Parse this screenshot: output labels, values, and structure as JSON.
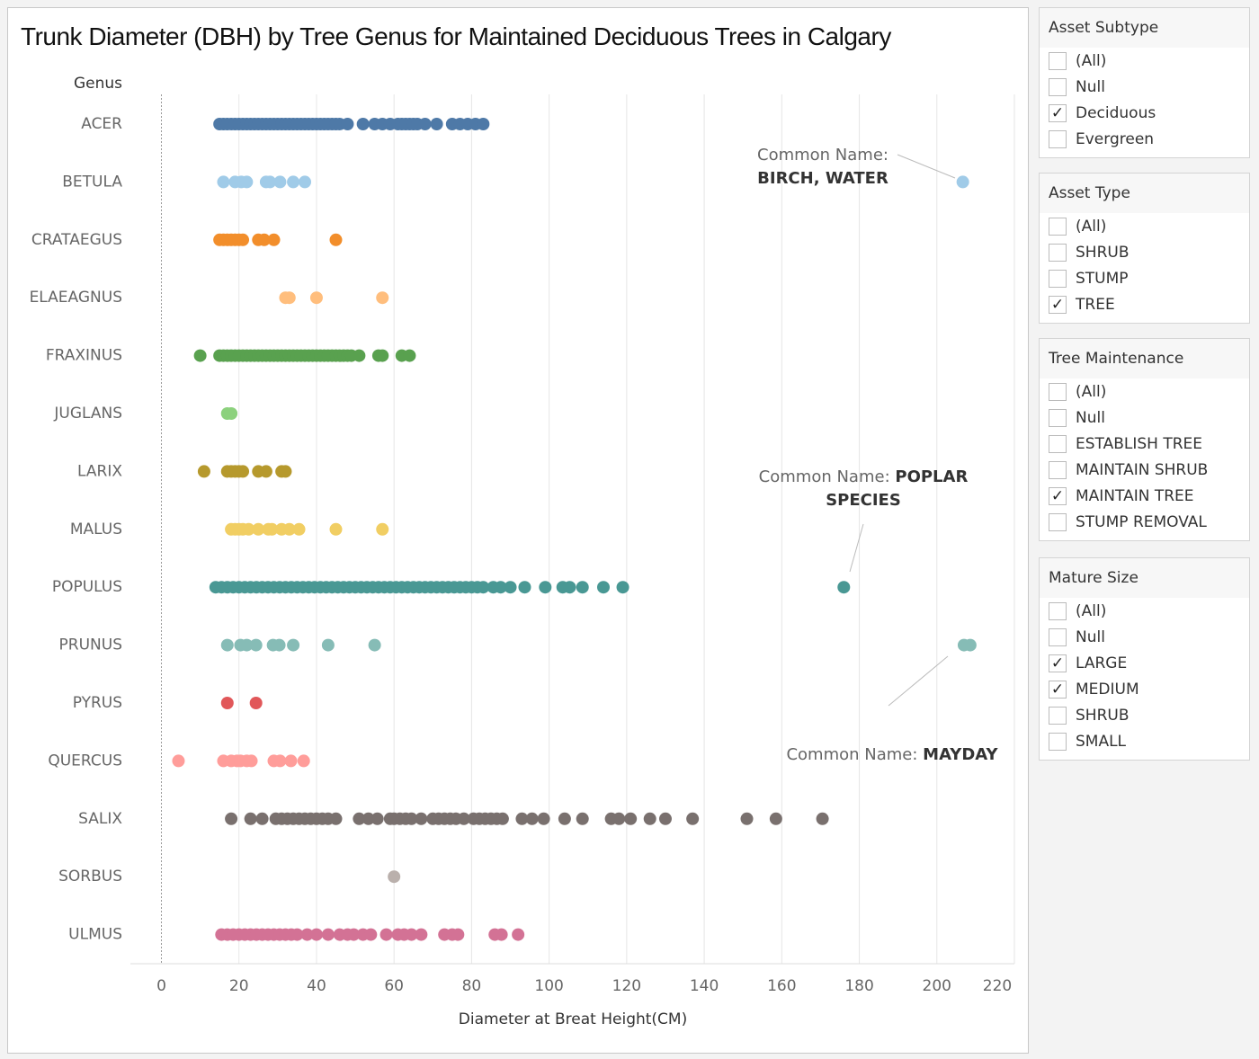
{
  "chart_data": {
    "type": "strip",
    "title": "Trunk Diameter (DBH) by Tree Genus for Maintained Deciduous Trees in Calgary",
    "y_header": "Genus",
    "x_label": "Diameter at Breat Height(CM)",
    "xlim": [
      -8,
      220
    ],
    "xticks": [
      0,
      20,
      40,
      60,
      80,
      100,
      120,
      140,
      160,
      180,
      200,
      220
    ],
    "grid": true,
    "series": [
      {
        "name": "ACER",
        "color": "#4e79a7",
        "values": [
          15,
          16,
          17,
          18,
          19,
          20,
          21,
          22,
          23,
          24,
          25,
          26,
          27,
          28,
          29,
          30,
          31,
          32,
          33,
          34,
          35,
          36,
          37,
          38,
          39,
          40,
          41,
          42,
          43,
          44,
          45,
          46,
          48,
          52,
          55,
          57,
          59,
          61,
          62,
          63,
          64,
          65,
          66,
          68,
          71,
          75,
          77,
          79,
          81,
          83
        ]
      },
      {
        "name": "BETULA",
        "color": "#a0cbe8",
        "values": [
          16,
          19,
          20.6,
          22,
          27,
          28,
          30.6,
          34,
          37,
          206.7
        ]
      },
      {
        "name": "CRATAEGUS",
        "color": "#f28e2b",
        "values": [
          15,
          16,
          17,
          18,
          19,
          20,
          21,
          25,
          26.5,
          29,
          45
        ]
      },
      {
        "name": "ELAEAGNUS",
        "color": "#ffbe7d",
        "values": [
          32,
          33,
          40,
          57
        ]
      },
      {
        "name": "FRAXINUS",
        "color": "#59a14f",
        "values": [
          10,
          15,
          16,
          17,
          18,
          19,
          20,
          21,
          22,
          23,
          24,
          25,
          26,
          27,
          28,
          29,
          30,
          31,
          32,
          33,
          34,
          35,
          36,
          37,
          38,
          39,
          40,
          41,
          42,
          43,
          44,
          45,
          46,
          47,
          48,
          49,
          51,
          56,
          57,
          62,
          64
        ]
      },
      {
        "name": "JUGLANS",
        "color": "#8cd17d",
        "values": [
          17,
          18
        ]
      },
      {
        "name": "LARIX",
        "color": "#b6992d",
        "values": [
          11,
          17,
          18,
          19,
          20,
          21,
          25,
          27,
          31,
          32
        ]
      },
      {
        "name": "MALUS",
        "color": "#f1ce63",
        "values": [
          18,
          19,
          20,
          21,
          22.5,
          25,
          27.6,
          28.5,
          31,
          33,
          35.5,
          45,
          57
        ]
      },
      {
        "name": "POPULUS",
        "color": "#499894",
        "values": [
          14,
          15.5,
          17,
          18.5,
          20,
          21.5,
          23,
          24.5,
          26,
          27.5,
          29,
          30.5,
          32,
          33.5,
          35,
          36.5,
          38,
          39.5,
          41,
          42.5,
          44,
          45.5,
          47,
          48.5,
          50,
          51.5,
          53,
          54.5,
          56,
          57.5,
          59,
          60.5,
          62,
          63.5,
          65,
          66.5,
          68,
          69.5,
          71,
          72.5,
          74,
          75.5,
          77,
          78.5,
          80,
          81.5,
          83,
          85.6,
          87.5,
          90,
          93.7,
          99,
          103.5,
          105.3,
          108.6,
          114,
          119,
          176
        ]
      },
      {
        "name": "PRUNUS",
        "color": "#86bcb6",
        "values": [
          17,
          20.4,
          22,
          24.4,
          28.8,
          30.4,
          34,
          43,
          55,
          207,
          208.6
        ]
      },
      {
        "name": "PYRUS",
        "color": "#e15759",
        "values": [
          17,
          24.4
        ]
      },
      {
        "name": "QUERCUS",
        "color": "#ff9d9a",
        "values": [
          4.4,
          16,
          18,
          19.5,
          20.4,
          22,
          23.2,
          29,
          30.6,
          33.4,
          36.7
        ]
      },
      {
        "name": "SALIX",
        "color": "#79706e",
        "values": [
          18,
          23,
          26,
          29.5,
          31,
          32.5,
          34,
          35.5,
          37,
          38.5,
          40,
          41.5,
          43,
          45,
          51,
          53.4,
          55.7,
          59,
          60,
          61.5,
          63,
          64.5,
          67,
          70,
          71.5,
          73,
          74.5,
          76,
          78,
          80.5,
          82,
          83.5,
          85,
          86.5,
          88,
          93,
          95.6,
          98.6,
          104,
          108.6,
          116,
          118,
          121,
          126,
          130,
          137,
          151,
          158.5,
          170.5
        ]
      },
      {
        "name": "SORBUS",
        "color": "#bab0ac",
        "values": [
          60
        ]
      },
      {
        "name": "ULMUS",
        "color": "#d37295",
        "values": [
          15.5,
          17,
          18.5,
          20,
          21.5,
          23,
          24.5,
          26,
          27.5,
          29,
          30.5,
          32,
          33.5,
          35,
          37.6,
          40,
          43,
          46,
          48,
          49.6,
          52,
          54,
          58,
          61,
          62.6,
          64.5,
          67,
          73,
          75,
          76.5,
          86,
          87.7,
          92
        ]
      }
    ],
    "annotations": [
      {
        "label": "Common Name:",
        "text": "BIRCH, WATER"
      },
      {
        "label": "Common Name:",
        "text": "POPLAR SPECIES"
      },
      {
        "label": "Common Name:",
        "text": "MAYDAY"
      }
    ]
  },
  "filters": [
    {
      "title": "Asset Subtype",
      "options": [
        {
          "label": "(All)",
          "checked": false
        },
        {
          "label": "Null",
          "checked": false
        },
        {
          "label": "Deciduous",
          "checked": true
        },
        {
          "label": "Evergreen",
          "checked": false
        }
      ]
    },
    {
      "title": "Asset Type",
      "options": [
        {
          "label": "(All)",
          "checked": false
        },
        {
          "label": "SHRUB",
          "checked": false
        },
        {
          "label": "STUMP",
          "checked": false
        },
        {
          "label": "TREE",
          "checked": true
        }
      ]
    },
    {
      "title": "Tree Maintenance",
      "options": [
        {
          "label": "(All)",
          "checked": false
        },
        {
          "label": "Null",
          "checked": false
        },
        {
          "label": "ESTABLISH TREE",
          "checked": false
        },
        {
          "label": "MAINTAIN SHRUB",
          "checked": false
        },
        {
          "label": "MAINTAIN TREE",
          "checked": true
        },
        {
          "label": "STUMP REMOVAL",
          "checked": false
        }
      ]
    },
    {
      "title": "Mature Size",
      "options": [
        {
          "label": "(All)",
          "checked": false
        },
        {
          "label": "Null",
          "checked": false
        },
        {
          "label": "LARGE",
          "checked": true
        },
        {
          "label": "MEDIUM",
          "checked": true
        },
        {
          "label": "SHRUB",
          "checked": false
        },
        {
          "label": "SMALL",
          "checked": false
        }
      ]
    }
  ]
}
